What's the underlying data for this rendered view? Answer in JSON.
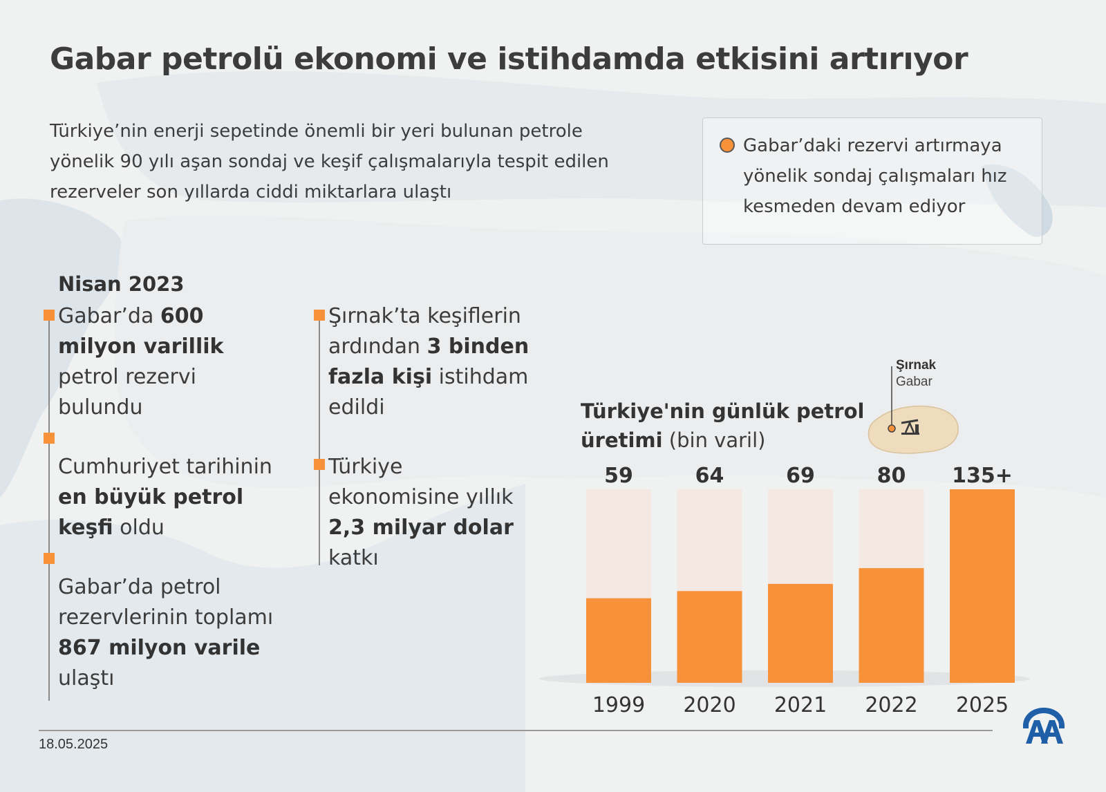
{
  "title": "Gabar petrolü ekonomi ve istihdamda etkisini artırıyor",
  "intro": "Türkiye’nin enerji sepetinde önemli bir yeri bulunan petrole yönelik 90 yılı aşan sondaj ve keşif çalışmalarıyla tespit edilen rezerveler son yıllarda ciddi miktarlara ulaştı",
  "infobox": "Gabar’daki rezervi artırmaya yönelik sondaj çalışmaları hız kesmeden devam ediyor",
  "timeline": {
    "heading": "Nisan 2023",
    "left": [
      {
        "pre": "Gabar’da ",
        "bold": "600 milyon varillik",
        "post": " petrol rezervi bulundu"
      },
      {
        "pre": "Cumhuriyet tarihinin ",
        "bold": "en büyük petrol keşfi",
        "post": " oldu"
      },
      {
        "pre": "Gabar’da petrol rezervlerinin toplamı ",
        "bold": "867 milyon varile",
        "post": " ulaştı"
      }
    ],
    "right": [
      {
        "pre": "Şırnak’ta keşiflerin ardından ",
        "bold": "3 binden fazla kişi",
        "post": " istihdam edildi"
      },
      {
        "pre": "Türkiye ekonomisine yıllık ",
        "bold": "2,3 milyar dolar",
        "post": " katkı"
      }
    ]
  },
  "map_labels": {
    "province": "Şırnak",
    "field": "Gabar"
  },
  "chart_title": {
    "bold": "Türkiye'nin günlük petrol üretimi",
    "normal": " (bin varil)"
  },
  "chart_data": {
    "type": "bar",
    "title": "Türkiye'nin günlük petrol üretimi (bin varil)",
    "categories": [
      "1999",
      "2020",
      "2021",
      "2022",
      "2025"
    ],
    "values": [
      59,
      64,
      69,
      80,
      135
    ],
    "value_labels": [
      "59",
      "64",
      "69",
      "80",
      "135+"
    ],
    "ylim": [
      0,
      135
    ],
    "colors": {
      "bar": "#f7913a",
      "track": "#f3e8df"
    }
  },
  "footer": {
    "date": "18.05.2025"
  },
  "colors": {
    "accent": "#f7913a",
    "text": "#3c3c3c"
  }
}
